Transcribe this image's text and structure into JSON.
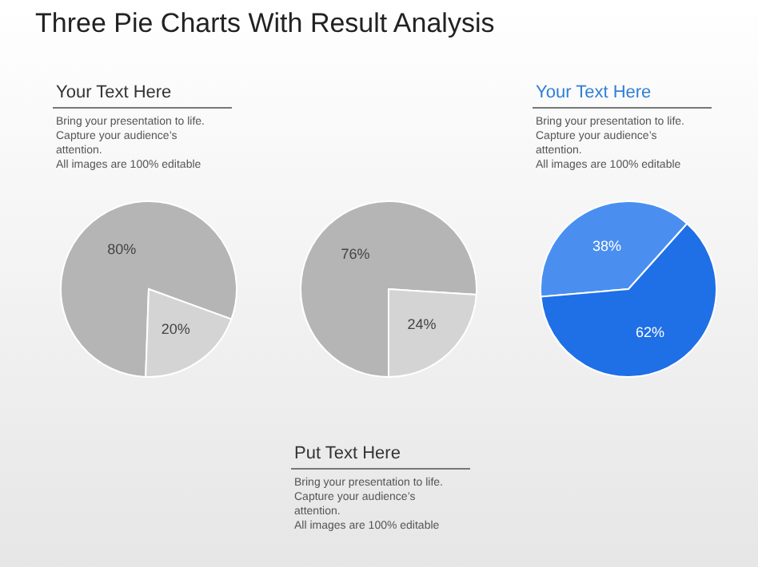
{
  "chart_data": [
    {
      "type": "pie",
      "title": "Three Pie Charts With Result Analysis",
      "categories": [
        null,
        null
      ],
      "values": [
        80,
        20
      ],
      "colors": [
        "#b5b5b5",
        "#d4d4d4"
      ],
      "value_labels": [
        "80%",
        "20%"
      ],
      "annotations": [
        "Your Text Here",
        "Bring your presentation to life.\nCapture your audience’s\nattention.\nAll images are 100% editable"
      ]
    },
    {
      "type": "pie",
      "categories": [
        null,
        null
      ],
      "values": [
        76,
        24
      ],
      "colors": [
        "#b5b5b5",
        "#d4d4d4"
      ],
      "value_labels": [
        "76%",
        "24%"
      ],
      "annotations": [
        "Put Text Here",
        "Bring your presentation to life.\nCapture your audience’s\nattention.\nAll images are 100% editable"
      ]
    },
    {
      "type": "pie",
      "categories": [
        null,
        null
      ],
      "values": [
        38,
        62
      ],
      "colors": [
        "#4a8ff0",
        "#1f6fe6"
      ],
      "value_labels": [
        "38%",
        "62%"
      ],
      "annotations": [
        "Your Text Here",
        "Bring your presentation to life.\nCapture your audience’s\nattention.\nAll images are 100% editable"
      ]
    }
  ]
}
